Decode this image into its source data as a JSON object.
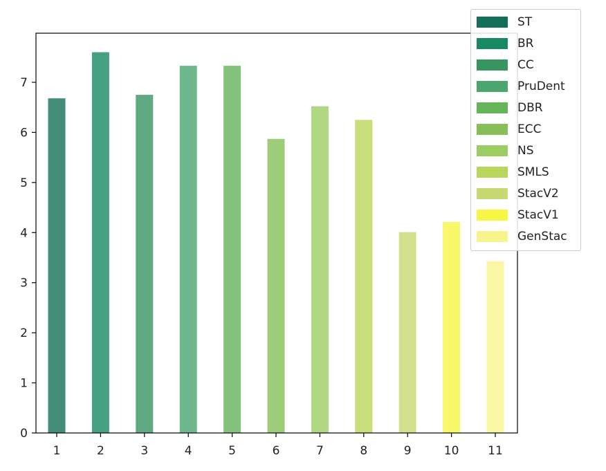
{
  "chart_data": {
    "type": "bar",
    "title": "",
    "xlabel": "",
    "ylabel": "",
    "categories": [
      "1",
      "2",
      "3",
      "4",
      "5",
      "6",
      "7",
      "8",
      "9",
      "10",
      "11"
    ],
    "series": [
      {
        "name": "ST",
        "x": "1",
        "value": 6.68,
        "color": "#136f56"
      },
      {
        "name": "BR",
        "x": "2",
        "value": 7.6,
        "color": "#188a62"
      },
      {
        "name": "CC",
        "x": "3",
        "value": 6.75,
        "color": "#379562"
      },
      {
        "name": "PruDent",
        "x": "4",
        "value": 7.33,
        "color": "#4aa66e"
      },
      {
        "name": "DBR",
        "x": "5",
        "value": 7.33,
        "color": "#65b45a"
      },
      {
        "name": "ECC",
        "x": "6",
        "value": 5.87,
        "color": "#86bf57"
      },
      {
        "name": "NS",
        "x": "7",
        "value": 6.52,
        "color": "#9ccd63"
      },
      {
        "name": "SMLS",
        "x": "8",
        "value": 6.25,
        "color": "#b9d65a"
      },
      {
        "name": "StacV2",
        "x": "9",
        "value": 4.01,
        "color": "#c8d973"
      },
      {
        "name": "StacV1",
        "x": "10",
        "value": 4.21,
        "color": "#f7f645"
      },
      {
        "name": "GenStac",
        "x": "11",
        "value": 3.43,
        "color": "#f7f48d"
      }
    ],
    "yticks": [
      0,
      1,
      2,
      3,
      4,
      5,
      6,
      7
    ],
    "ylim": [
      0,
      7.98
    ],
    "grid": false,
    "legend_position": "upper-right",
    "bar_alpha": 0.8
  }
}
